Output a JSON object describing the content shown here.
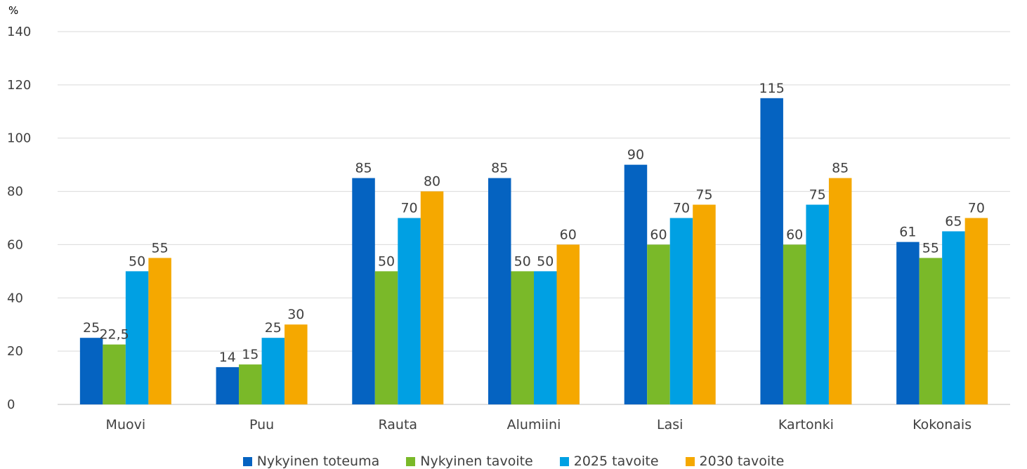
{
  "chart_data": {
    "type": "bar",
    "unit_label": "%",
    "categories": [
      "Muovi",
      "Puu",
      "Rauta",
      "Alumiini",
      "Lasi",
      "Kartonki",
      "Kokonais"
    ],
    "series": [
      {
        "name": "Nykyinen toteuma",
        "color": "#0563c1",
        "values": [
          25,
          14,
          85,
          85,
          90,
          115,
          61
        ],
        "labels": [
          "25",
          "14",
          "85",
          "85",
          "90",
          "115",
          "61"
        ]
      },
      {
        "name": "Nykyinen tavoite",
        "color": "#7ab929",
        "values": [
          22.5,
          15,
          50,
          50,
          60,
          60,
          55
        ],
        "labels": [
          "22,5",
          "15",
          "50",
          "50",
          "60",
          "60",
          "55"
        ]
      },
      {
        "name": "2025 tavoite",
        "color": "#00a0e3",
        "values": [
          50,
          25,
          70,
          50,
          70,
          75,
          65
        ],
        "labels": [
          "50",
          "25",
          "70",
          "50",
          "70",
          "75",
          "65"
        ]
      },
      {
        "name": "2030 tavoite",
        "color": "#f5a800",
        "values": [
          55,
          30,
          80,
          60,
          75,
          85,
          70
        ],
        "labels": [
          "55",
          "30",
          "80",
          "60",
          "75",
          "85",
          "70"
        ]
      }
    ],
    "ylim": [
      0,
      140
    ],
    "yticks": [
      0,
      20,
      40,
      60,
      80,
      100,
      120,
      140
    ],
    "grid": true,
    "legend_position": "bottom"
  }
}
